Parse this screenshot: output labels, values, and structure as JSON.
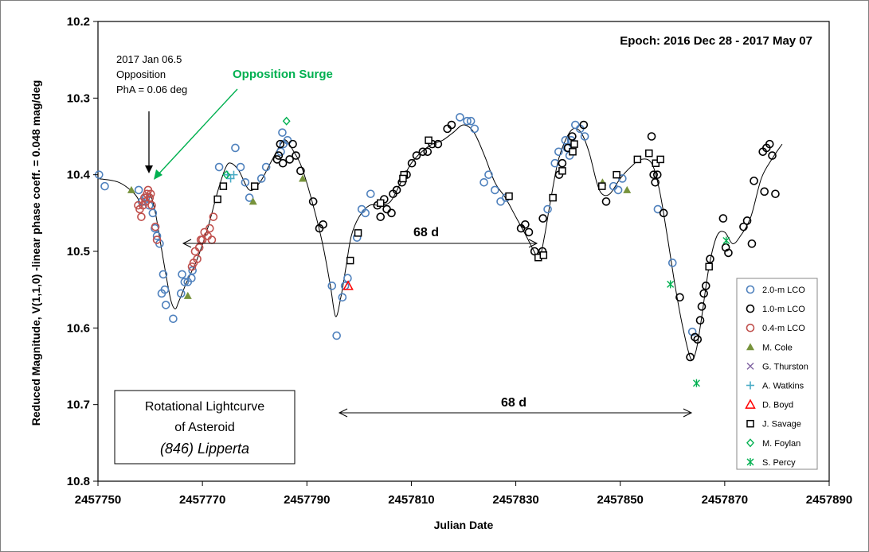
{
  "chart_data": {
    "type": "scatter",
    "title": "",
    "xlabel": "Julian Date",
    "ylabel": "Reduced Magnitude, V(1,1,0)  -linear phase coeff. = 0.048 mag/deg",
    "xlim": [
      2457750,
      2457890
    ],
    "ylim": [
      10.2,
      10.8
    ],
    "y_inverted": true,
    "grid": false,
    "xticks": [
      "2457750",
      "2457770",
      "2457790",
      "2457810",
      "2457830",
      "2457850",
      "2457870",
      "2457890"
    ],
    "yticks": [
      "10.2",
      "10.3",
      "10.4",
      "10.5",
      "10.6",
      "10.7",
      "10.8"
    ],
    "legend_position": "bottom-right",
    "annotations": {
      "epoch": "Epoch:  2016 Dec 28 - 2017 May 07",
      "opposition_date": "2017 Jan 06.5",
      "opposition_label": "Opposition",
      "opposition_phase": "PhA = 0.06 deg",
      "surge": "Opposition Surge",
      "period1": "68 d",
      "period2": "68 d",
      "title_box_line1": "Rotational  Lightcurve",
      "title_box_line2": "of Asteroid",
      "title_box_line3": "(846) Lipperta"
    },
    "series": [
      {
        "name": "2.0-m LCO",
        "marker": "circle",
        "color": "#4f81bd",
        "points": [
          [
            2457750.2,
            10.4
          ],
          [
            2457751.3,
            10.415
          ],
          [
            2457757.8,
            10.42
          ],
          [
            2457758.4,
            10.435
          ],
          [
            2457759.2,
            10.43
          ],
          [
            2457759.8,
            10.44
          ],
          [
            2457760.5,
            10.45
          ],
          [
            2457760.9,
            10.47
          ],
          [
            2457761.3,
            10.48
          ],
          [
            2457761.8,
            10.49
          ],
          [
            2457762.5,
            10.53
          ],
          [
            2457762.8,
            10.55
          ],
          [
            2457762.2,
            10.555
          ],
          [
            2457763.0,
            10.57
          ],
          [
            2457764.4,
            10.588
          ],
          [
            2457765.9,
            10.555
          ],
          [
            2457766.1,
            10.53
          ],
          [
            2457766.6,
            10.54
          ],
          [
            2457767.2,
            10.54
          ],
          [
            2457767.9,
            10.535
          ],
          [
            2457768.1,
            10.525
          ],
          [
            2457773.2,
            10.39
          ],
          [
            2457776.3,
            10.365
          ],
          [
            2457777.3,
            10.39
          ],
          [
            2457778.2,
            10.41
          ],
          [
            2457779.0,
            10.43
          ],
          [
            2457781.3,
            10.405
          ],
          [
            2457782.2,
            10.39
          ],
          [
            2457785.0,
            10.37
          ],
          [
            2457785.5,
            10.36
          ],
          [
            2457785.3,
            10.345
          ],
          [
            2457786.3,
            10.355
          ],
          [
            2457794.8,
            10.545
          ],
          [
            2457795.7,
            10.61
          ],
          [
            2457796.8,
            10.56
          ],
          [
            2457797.3,
            10.545
          ],
          [
            2457797.8,
            10.535
          ],
          [
            2457799.6,
            10.482
          ],
          [
            2457800.5,
            10.445
          ],
          [
            2457801.2,
            10.45
          ],
          [
            2457802.2,
            10.425
          ],
          [
            2457819.3,
            10.325
          ],
          [
            2457820.7,
            10.33
          ],
          [
            2457821.4,
            10.33
          ],
          [
            2457822.1,
            10.34
          ],
          [
            2457823.9,
            10.41
          ],
          [
            2457824.8,
            10.4
          ],
          [
            2457826.0,
            10.42
          ],
          [
            2457827.1,
            10.435
          ],
          [
            2457828.1,
            10.43
          ],
          [
            2457836.1,
            10.445
          ],
          [
            2457837.5,
            10.385
          ],
          [
            2457838.2,
            10.37
          ],
          [
            2457839.5,
            10.355
          ],
          [
            2457839.8,
            10.365
          ],
          [
            2457840.3,
            10.375
          ],
          [
            2457840.6,
            10.355
          ],
          [
            2457841.4,
            10.335
          ],
          [
            2457842.3,
            10.34
          ],
          [
            2457843.2,
            10.35
          ],
          [
            2457848.7,
            10.415
          ],
          [
            2457849.6,
            10.42
          ],
          [
            2457850.4,
            10.405
          ],
          [
            2457857.2,
            10.445
          ],
          [
            2457860.0,
            10.515
          ],
          [
            2457863.8,
            10.605
          ]
        ]
      },
      {
        "name": "1.0-m LCO",
        "marker": "circle",
        "color": "#000000",
        "points": [
          [
            2457784.3,
            10.38
          ],
          [
            2457784.6,
            10.375
          ],
          [
            2457784.9,
            10.36
          ],
          [
            2457785.4,
            10.385
          ],
          [
            2457786.7,
            10.38
          ],
          [
            2457787.3,
            10.36
          ],
          [
            2457787.9,
            10.375
          ],
          [
            2457788.8,
            10.395
          ],
          [
            2457791.2,
            10.435
          ],
          [
            2457792.4,
            10.47
          ],
          [
            2457793.1,
            10.465
          ],
          [
            2457803.5,
            10.44
          ],
          [
            2457804.1,
            10.455
          ],
          [
            2457804.8,
            10.432
          ],
          [
            2457805.3,
            10.445
          ],
          [
            2457806.2,
            10.45
          ],
          [
            2457806.5,
            10.425
          ],
          [
            2457807.2,
            10.42
          ],
          [
            2457808.2,
            10.41
          ],
          [
            2457809.1,
            10.4
          ],
          [
            2457810.1,
            10.385
          ],
          [
            2457811.0,
            10.375
          ],
          [
            2457812.2,
            10.37
          ],
          [
            2457813.1,
            10.37
          ],
          [
            2457814.0,
            10.36
          ],
          [
            2457815.1,
            10.36
          ],
          [
            2457816.9,
            10.34
          ],
          [
            2457817.7,
            10.335
          ],
          [
            2457831.0,
            10.47
          ],
          [
            2457831.8,
            10.465
          ],
          [
            2457832.5,
            10.475
          ],
          [
            2457833.6,
            10.5
          ],
          [
            2457835.1,
            10.5
          ],
          [
            2457835.2,
            10.457
          ],
          [
            2457838.3,
            10.4
          ],
          [
            2457838.9,
            10.385
          ],
          [
            2457840.0,
            10.365
          ],
          [
            2457840.8,
            10.35
          ],
          [
            2457843.0,
            10.335
          ],
          [
            2457847.3,
            10.435
          ],
          [
            2457856.0,
            10.35
          ],
          [
            2457856.4,
            10.4
          ],
          [
            2457856.7,
            10.41
          ],
          [
            2457857.1,
            10.4
          ],
          [
            2457858.3,
            10.45
          ],
          [
            2457861.4,
            10.56
          ],
          [
            2457863.4,
            10.638
          ],
          [
            2457864.3,
            10.612
          ],
          [
            2457864.8,
            10.615
          ],
          [
            2457865.3,
            10.59
          ],
          [
            2457865.6,
            10.572
          ],
          [
            2457866.0,
            10.555
          ],
          [
            2457866.4,
            10.545
          ],
          [
            2457867.2,
            10.51
          ],
          [
            2457869.7,
            10.457
          ],
          [
            2457870.2,
            10.495
          ],
          [
            2457870.7,
            10.502
          ],
          [
            2457873.6,
            10.468
          ],
          [
            2457874.3,
            10.46
          ],
          [
            2457875.2,
            10.49
          ],
          [
            2457875.6,
            10.408
          ],
          [
            2457877.3,
            10.37
          ],
          [
            2457878.0,
            10.365
          ],
          [
            2457878.6,
            10.36
          ],
          [
            2457879.1,
            10.375
          ],
          [
            2457877.6,
            10.422
          ],
          [
            2457879.7,
            10.425
          ]
        ]
      },
      {
        "name": "0.4-m LCO",
        "marker": "circle",
        "color": "#c0504d",
        "points": [
          [
            2457757.7,
            10.44
          ],
          [
            2457758.0,
            10.445
          ],
          [
            2457758.3,
            10.455
          ],
          [
            2457758.6,
            10.44
          ],
          [
            2457758.9,
            10.43
          ],
          [
            2457759.1,
            10.435
          ],
          [
            2457759.4,
            10.425
          ],
          [
            2457759.6,
            10.42
          ],
          [
            2457759.9,
            10.43
          ],
          [
            2457760.1,
            10.425
          ],
          [
            2457760.3,
            10.44
          ],
          [
            2457761.0,
            10.468
          ],
          [
            2457761.3,
            10.485
          ],
          [
            2457768.0,
            10.52
          ],
          [
            2457768.3,
            10.515
          ],
          [
            2457768.6,
            10.5
          ],
          [
            2457769.0,
            10.51
          ],
          [
            2457769.4,
            10.495
          ],
          [
            2457769.7,
            10.485
          ],
          [
            2457770.0,
            10.485
          ],
          [
            2457770.4,
            10.475
          ],
          [
            2457771.0,
            10.48
          ],
          [
            2457771.4,
            10.47
          ],
          [
            2457771.8,
            10.485
          ],
          [
            2457772.1,
            10.455
          ]
        ]
      },
      {
        "name": "M. Cole",
        "marker": "triangle",
        "color": "#77933c",
        "points": [
          [
            2457756.4,
            10.42
          ],
          [
            2457767.2,
            10.558
          ],
          [
            2457779.7,
            10.435
          ],
          [
            2457789.2,
            10.405
          ],
          [
            2457846.6,
            10.41
          ],
          [
            2457851.3,
            10.42
          ]
        ]
      },
      {
        "name": "G. Thurston",
        "marker": "x",
        "color": "#8064a2",
        "points": []
      },
      {
        "name": "A. Watkins",
        "marker": "plus",
        "color": "#4bacc6",
        "points": [
          [
            2457774.8,
            10.4
          ],
          [
            2457775.4,
            10.405
          ],
          [
            2457776.0,
            10.4
          ]
        ]
      },
      {
        "name": "D. Boyd",
        "marker": "triangle-open",
        "color": "#ff0000",
        "points": [
          [
            2457797.9,
            10.545
          ]
        ]
      },
      {
        "name": "J. Savage",
        "marker": "square",
        "color": "#000000",
        "points": [
          [
            2457772.9,
            10.432
          ],
          [
            2457774.0,
            10.415
          ],
          [
            2457780.0,
            10.415
          ],
          [
            2457798.3,
            10.512
          ],
          [
            2457799.8,
            10.476
          ],
          [
            2457804.1,
            10.437
          ],
          [
            2457808.6,
            10.4
          ],
          [
            2457808.4,
            10.405
          ],
          [
            2457813.3,
            10.355
          ],
          [
            2457828.7,
            10.428
          ],
          [
            2457834.3,
            10.508
          ],
          [
            2457835.3,
            10.505
          ],
          [
            2457837.1,
            10.43
          ],
          [
            2457838.9,
            10.395
          ],
          [
            2457841.2,
            10.36
          ],
          [
            2457840.9,
            10.37
          ],
          [
            2457846.5,
            10.415
          ],
          [
            2457849.3,
            10.4
          ],
          [
            2457853.3,
            10.38
          ],
          [
            2457855.5,
            10.372
          ],
          [
            2457856.8,
            10.385
          ],
          [
            2457857.7,
            10.38
          ],
          [
            2457867.0,
            10.52
          ]
        ]
      },
      {
        "name": "M. Foylan",
        "marker": "diamond",
        "color": "#00b050",
        "points": [
          [
            2457774.6,
            10.4
          ],
          [
            2457786.1,
            10.33
          ]
        ]
      },
      {
        "name": "S. Percy",
        "marker": "asterisk",
        "color": "#00b050",
        "points": [
          [
            2457859.6,
            10.543
          ],
          [
            2457864.6,
            10.672
          ],
          [
            2457870.3,
            10.486
          ]
        ]
      }
    ],
    "fit_curve": [
      [
        2457750,
        10.405
      ],
      [
        2457754,
        10.41
      ],
      [
        2457757,
        10.425
      ],
      [
        2457758.5,
        10.44
      ],
      [
        2457759.5,
        10.43
      ],
      [
        2457760,
        10.425
      ],
      [
        2457761,
        10.45
      ],
      [
        2457762,
        10.49
      ],
      [
        2457763,
        10.53
      ],
      [
        2457764,
        10.565
      ],
      [
        2457764.8,
        10.575
      ],
      [
        2457765.5,
        10.565
      ],
      [
        2457767,
        10.54
      ],
      [
        2457769,
        10.51
      ],
      [
        2457771,
        10.47
      ],
      [
        2457773,
        10.42
      ],
      [
        2457774.5,
        10.39
      ],
      [
        2457775.5,
        10.385
      ],
      [
        2457777,
        10.395
      ],
      [
        2457779,
        10.42
      ],
      [
        2457781,
        10.41
      ],
      [
        2457783,
        10.385
      ],
      [
        2457785,
        10.36
      ],
      [
        2457786,
        10.355
      ],
      [
        2457787.5,
        10.37
      ],
      [
        2457789,
        10.39
      ],
      [
        2457791,
        10.435
      ],
      [
        2457793,
        10.49
      ],
      [
        2457794.5,
        10.545
      ],
      [
        2457795.5,
        10.585
      ],
      [
        2457796.5,
        10.56
      ],
      [
        2457797.5,
        10.52
      ],
      [
        2457798.5,
        10.48
      ],
      [
        2457800,
        10.455
      ],
      [
        2457802,
        10.44
      ],
      [
        2457804,
        10.44
      ],
      [
        2457806,
        10.435
      ],
      [
        2457808,
        10.41
      ],
      [
        2457810,
        10.385
      ],
      [
        2457812,
        10.37
      ],
      [
        2457814,
        10.36
      ],
      [
        2457816,
        10.355
      ],
      [
        2457818,
        10.345
      ],
      [
        2457820,
        10.335
      ],
      [
        2457822,
        10.345
      ],
      [
        2457824,
        10.375
      ],
      [
        2457826,
        10.41
      ],
      [
        2457828,
        10.43
      ],
      [
        2457830,
        10.455
      ],
      [
        2457832,
        10.48
      ],
      [
        2457833.5,
        10.5
      ],
      [
        2457834.5,
        10.51
      ],
      [
        2457835.5,
        10.48
      ],
      [
        2457836.5,
        10.44
      ],
      [
        2457838,
        10.385
      ],
      [
        2457839.5,
        10.355
      ],
      [
        2457841,
        10.34
      ],
      [
        2457842.5,
        10.345
      ],
      [
        2457844,
        10.37
      ],
      [
        2457845.5,
        10.41
      ],
      [
        2457846.5,
        10.425
      ],
      [
        2457848,
        10.425
      ],
      [
        2457850,
        10.405
      ],
      [
        2457852,
        10.39
      ],
      [
        2457854,
        10.38
      ],
      [
        2457856,
        10.385
      ],
      [
        2457857.5,
        10.42
      ],
      [
        2457859,
        10.48
      ],
      [
        2457860.5,
        10.545
      ],
      [
        2457862,
        10.6
      ],
      [
        2457863.5,
        10.64
      ],
      [
        2457864.5,
        10.63
      ],
      [
        2457865.5,
        10.59
      ],
      [
        2457867,
        10.52
      ],
      [
        2457868.5,
        10.48
      ],
      [
        2457870,
        10.475
      ],
      [
        2457871.5,
        10.49
      ],
      [
        2457873,
        10.48
      ],
      [
        2457875,
        10.455
      ],
      [
        2457877,
        10.405
      ],
      [
        2457879,
        10.38
      ],
      [
        2457881,
        10.36
      ]
    ]
  },
  "legend_title": ""
}
